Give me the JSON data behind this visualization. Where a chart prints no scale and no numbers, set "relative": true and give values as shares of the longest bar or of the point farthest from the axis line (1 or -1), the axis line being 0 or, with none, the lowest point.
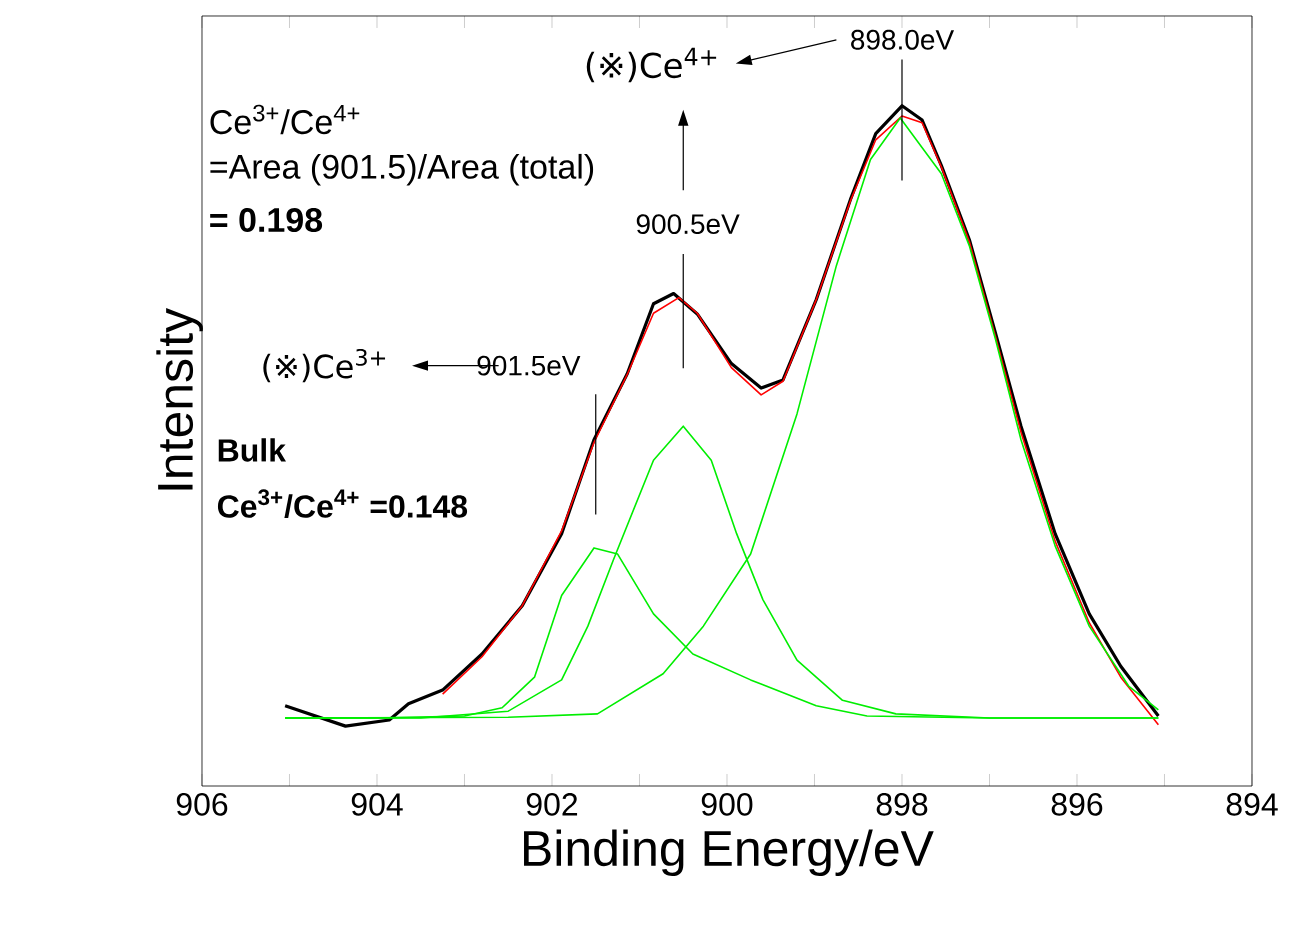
{
  "chart_data": {
    "type": "line",
    "xlabel": "Binding Energy/eV",
    "ylabel": "Intensity",
    "relative": true,
    "xlim": [
      906,
      894
    ],
    "xticks": [
      906,
      {
        "value": 905,
        "label": null
      },
      904,
      {
        "value": 903,
        "label": null
      },
      902,
      {
        "value": 901,
        "label": null
      },
      900,
      {
        "value": 899,
        "label": null
      },
      898,
      {
        "value": 897,
        "label": null
      },
      896,
      {
        "value": 895,
        "label": null
      },
      894
    ],
    "grid": false,
    "marker": "none",
    "line_style": "solid",
    "series": [
      {
        "color": "#000000",
        "x": [
          905.05,
          904.36,
          903.86,
          903.64,
          903.25,
          902.8,
          902.34,
          901.89,
          901.52,
          901.14,
          900.84,
          900.61,
          900.34,
          899.95,
          899.61,
          899.36,
          898.98,
          898.59,
          898.3,
          898.0,
          897.77,
          897.55,
          897.23,
          896.93,
          896.64,
          896.25,
          895.86,
          895.5,
          895.07
        ],
        "values": [
          0.118,
          0.088,
          0.097,
          0.121,
          0.141,
          0.194,
          0.265,
          0.371,
          0.509,
          0.606,
          0.709,
          0.724,
          0.694,
          0.621,
          0.585,
          0.597,
          0.715,
          0.862,
          0.959,
          1.0,
          0.979,
          0.912,
          0.803,
          0.665,
          0.529,
          0.371,
          0.253,
          0.176,
          0.103
        ]
      },
      {
        "color": "#ff0000",
        "x": [
          903.25,
          902.8,
          902.34,
          901.89,
          901.52,
          901.14,
          900.84,
          900.55,
          900.34,
          899.95,
          899.61,
          899.36,
          898.98,
          898.59,
          898.3,
          898.0,
          897.77,
          897.55,
          897.23,
          896.93,
          896.64,
          896.25,
          895.86,
          895.5,
          895.07
        ],
        "values": [
          0.135,
          0.19,
          0.265,
          0.375,
          0.505,
          0.605,
          0.695,
          0.718,
          0.695,
          0.615,
          0.575,
          0.595,
          0.715,
          0.86,
          0.95,
          0.985,
          0.975,
          0.91,
          0.8,
          0.66,
          0.52,
          0.36,
          0.24,
          0.16,
          0.09
        ]
      },
      {
        "color": "#00ee00",
        "x": [
          905.05,
          904.0,
          903.0,
          902.57,
          902.2,
          901.89,
          901.52,
          901.25,
          900.84,
          900.39,
          899.73,
          898.98,
          898.4,
          897.0,
          895.07
        ],
        "values": [
          0.1,
          0.1,
          0.103,
          0.115,
          0.16,
          0.28,
          0.35,
          0.341,
          0.253,
          0.194,
          0.156,
          0.118,
          0.103,
          0.1,
          0.1
        ]
      },
      {
        "color": "#00ee00",
        "x": [
          905.05,
          903.5,
          902.5,
          901.89,
          901.59,
          901.3,
          900.84,
          900.5,
          900.18,
          899.89,
          899.59,
          899.2,
          898.68,
          898.07,
          897.0,
          895.07
        ],
        "values": [
          0.1,
          0.1,
          0.11,
          0.156,
          0.235,
          0.332,
          0.479,
          0.529,
          0.479,
          0.371,
          0.274,
          0.185,
          0.126,
          0.106,
          0.1,
          0.1
        ]
      },
      {
        "color": "#00ee00",
        "x": [
          905.05,
          902.5,
          901.48,
          900.73,
          900.27,
          899.73,
          899.2,
          898.75,
          898.36,
          898.02,
          897.55,
          897.23,
          896.93,
          896.64,
          896.25,
          895.86,
          895.41,
          895.07
        ],
        "values": [
          0.1,
          0.101,
          0.106,
          0.165,
          0.235,
          0.341,
          0.547,
          0.765,
          0.921,
          0.982,
          0.9,
          0.794,
          0.656,
          0.509,
          0.353,
          0.235,
          0.147,
          0.112
        ]
      }
    ],
    "annotations": [
      "Ce$^{3+}$/Ce$^{4+}$",
      "=Area (901.5)/Area (total)",
      "= **0.198**",
      "(※)Ce$^{4+}$",
      {
        "text": "898.0eV",
        "x": 898.0,
        "y": 1.0
      },
      {
        "text": "900.5eV",
        "x": 900.5,
        "y": 0.724
      },
      "(※)Ce$^{3+}$",
      {
        "text": "901.5eV",
        "x": 901.5,
        "y": 0.509
      },
      "Bulk",
      "Ce$^{3+}$/Ce$^{4+}$ =0.148"
    ]
  }
}
